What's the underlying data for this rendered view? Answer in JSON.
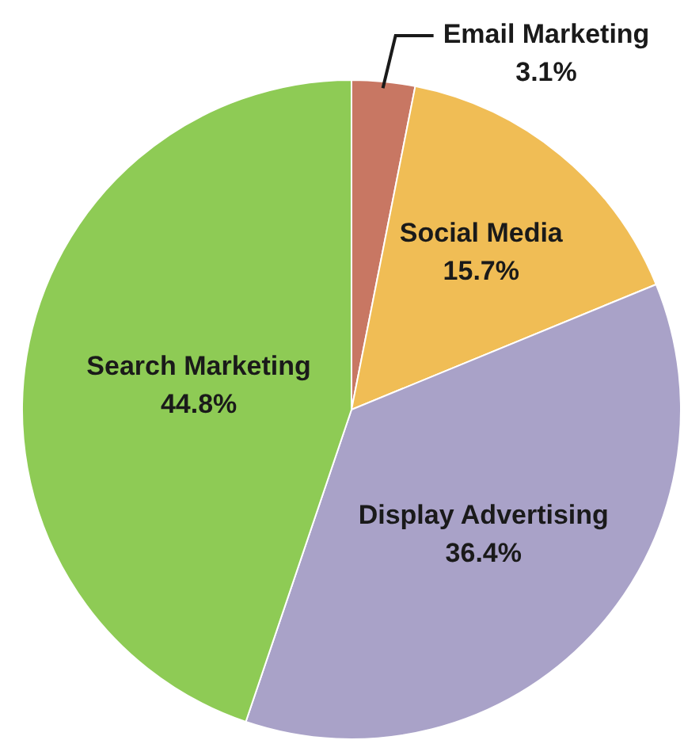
{
  "chart_data": {
    "type": "pie",
    "categories": [
      "Email Marketing",
      "Social Media",
      "Display Advertising",
      "Search Marketing"
    ],
    "values": [
      3.1,
      15.7,
      36.4,
      44.8
    ],
    "value_labels": [
      "3.1%",
      "15.7%",
      "36.4%",
      "44.8%"
    ],
    "colors": [
      "#c87763",
      "#f0bd55",
      "#a9a2c8",
      "#8ecb55"
    ],
    "legend": false
  }
}
